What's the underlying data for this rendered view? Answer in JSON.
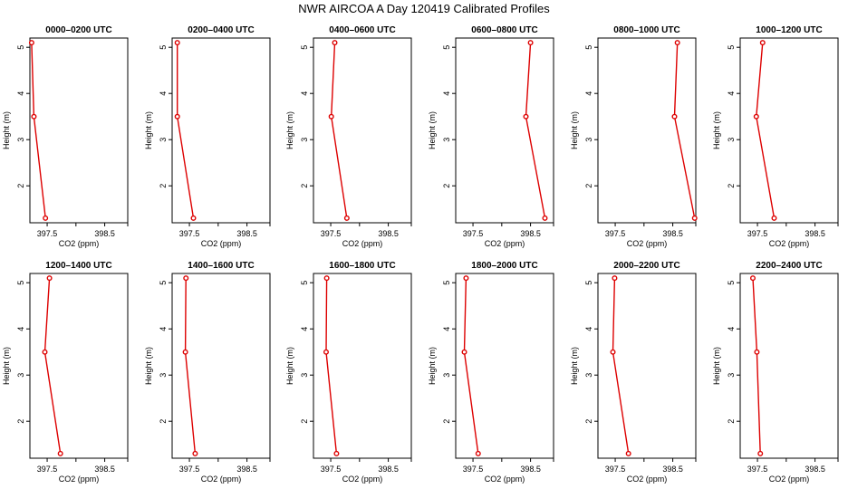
{
  "page": {
    "title": "NWR AIRCOA A  Day 120419  Calibrated Profiles"
  },
  "colors": {
    "line": "#dd0000",
    "axis": "#000000"
  },
  "chart_data": [
    {
      "type": "line",
      "title": "0000–0200 UTC",
      "xlabel": "CO2 (ppm)",
      "ylabel": "Height (m)",
      "xlim": [
        397.2,
        398.9
      ],
      "ylim": [
        1.2,
        5.2
      ],
      "xticks": [
        "397.5",
        "398.5"
      ],
      "yticks": [
        "2",
        "3",
        "4",
        "5"
      ],
      "x": [
        397.23,
        397.27,
        397.47
      ],
      "y": [
        5.1,
        3.5,
        1.3
      ]
    },
    {
      "type": "line",
      "title": "0200–0400 UTC",
      "xlabel": "CO2 (ppm)",
      "ylabel": "Height (m)",
      "xlim": [
        397.2,
        398.9
      ],
      "ylim": [
        1.2,
        5.2
      ],
      "xticks": [
        "397.5",
        "398.5"
      ],
      "yticks": [
        "2",
        "3",
        "4",
        "5"
      ],
      "x": [
        397.29,
        397.29,
        397.57
      ],
      "y": [
        5.1,
        3.5,
        1.3
      ]
    },
    {
      "type": "line",
      "title": "0400–0600 UTC",
      "xlabel": "CO2 (ppm)",
      "ylabel": "Height (m)",
      "xlim": [
        397.2,
        398.9
      ],
      "ylim": [
        1.2,
        5.2
      ],
      "xticks": [
        "397.5",
        "398.5"
      ],
      "yticks": [
        "2",
        "3",
        "4",
        "5"
      ],
      "x": [
        397.57,
        397.51,
        397.78
      ],
      "y": [
        5.1,
        3.5,
        1.3
      ]
    },
    {
      "type": "line",
      "title": "0600–0800 UTC",
      "xlabel": "CO2 (ppm)",
      "ylabel": "Height (m)",
      "xlim": [
        397.2,
        398.9
      ],
      "ylim": [
        1.2,
        5.2
      ],
      "xticks": [
        "397.5",
        "398.5"
      ],
      "yticks": [
        "2",
        "3",
        "4",
        "5"
      ],
      "x": [
        398.5,
        398.42,
        398.75
      ],
      "y": [
        5.1,
        3.5,
        1.3
      ]
    },
    {
      "type": "line",
      "title": "0800–1000 UTC",
      "xlabel": "CO2 (ppm)",
      "ylabel": "Height (m)",
      "xlim": [
        397.2,
        398.9
      ],
      "ylim": [
        1.2,
        5.2
      ],
      "xticks": [
        "397.5",
        "398.5"
      ],
      "yticks": [
        "2",
        "3",
        "4",
        "5"
      ],
      "x": [
        398.58,
        398.53,
        398.88
      ],
      "y": [
        5.1,
        3.5,
        1.3
      ]
    },
    {
      "type": "line",
      "title": "1000–1200 UTC",
      "xlabel": "CO2 (ppm)",
      "ylabel": "Height (m)",
      "xlim": [
        397.2,
        398.9
      ],
      "ylim": [
        1.2,
        5.2
      ],
      "xticks": [
        "397.5",
        "398.5"
      ],
      "yticks": [
        "2",
        "3",
        "4",
        "5"
      ],
      "x": [
        397.59,
        397.48,
        397.79
      ],
      "y": [
        5.1,
        3.5,
        1.3
      ]
    },
    {
      "type": "line",
      "title": "1200–1400 UTC",
      "xlabel": "CO2 (ppm)",
      "ylabel": "Height (m)",
      "xlim": [
        397.2,
        398.9
      ],
      "ylim": [
        1.2,
        5.2
      ],
      "xticks": [
        "397.5",
        "398.5"
      ],
      "yticks": [
        "2",
        "3",
        "4",
        "5"
      ],
      "x": [
        397.54,
        397.46,
        397.73
      ],
      "y": [
        5.1,
        3.5,
        1.3
      ]
    },
    {
      "type": "line",
      "title": "1400–1600 UTC",
      "xlabel": "CO2 (ppm)",
      "ylabel": "Height (m)",
      "xlim": [
        397.2,
        398.9
      ],
      "ylim": [
        1.2,
        5.2
      ],
      "xticks": [
        "397.5",
        "398.5"
      ],
      "yticks": [
        "2",
        "3",
        "4",
        "5"
      ],
      "x": [
        397.44,
        397.43,
        397.6
      ],
      "y": [
        5.1,
        3.5,
        1.3
      ]
    },
    {
      "type": "line",
      "title": "1600–1800 UTC",
      "xlabel": "CO2 (ppm)",
      "ylabel": "Height (m)",
      "xlim": [
        397.2,
        398.9
      ],
      "ylim": [
        1.2,
        5.2
      ],
      "xticks": [
        "397.5",
        "398.5"
      ],
      "yticks": [
        "2",
        "3",
        "4",
        "5"
      ],
      "x": [
        397.43,
        397.42,
        397.6
      ],
      "y": [
        5.1,
        3.5,
        1.3
      ]
    },
    {
      "type": "line",
      "title": "1800–2000 UTC",
      "xlabel": "CO2 (ppm)",
      "ylabel": "Height (m)",
      "xlim": [
        397.2,
        398.9
      ],
      "ylim": [
        1.2,
        5.2
      ],
      "xticks": [
        "397.5",
        "398.5"
      ],
      "yticks": [
        "2",
        "3",
        "4",
        "5"
      ],
      "x": [
        397.38,
        397.35,
        397.59
      ],
      "y": [
        5.1,
        3.5,
        1.3
      ]
    },
    {
      "type": "line",
      "title": "2000–2200 UTC",
      "xlabel": "CO2 (ppm)",
      "ylabel": "Height (m)",
      "xlim": [
        397.2,
        398.9
      ],
      "ylim": [
        1.2,
        5.2
      ],
      "xticks": [
        "397.5",
        "398.5"
      ],
      "yticks": [
        "2",
        "3",
        "4",
        "5"
      ],
      "x": [
        397.49,
        397.46,
        397.73
      ],
      "y": [
        5.1,
        3.5,
        1.3
      ]
    },
    {
      "type": "line",
      "title": "2200–2400 UTC",
      "xlabel": "CO2 (ppm)",
      "ylabel": "Height (m)",
      "xlim": [
        397.2,
        398.9
      ],
      "ylim": [
        1.2,
        5.2
      ],
      "xticks": [
        "397.5",
        "398.5"
      ],
      "yticks": [
        "2",
        "3",
        "4",
        "5"
      ],
      "x": [
        397.42,
        397.49,
        397.55
      ],
      "y": [
        5.1,
        3.5,
        1.3
      ]
    }
  ]
}
